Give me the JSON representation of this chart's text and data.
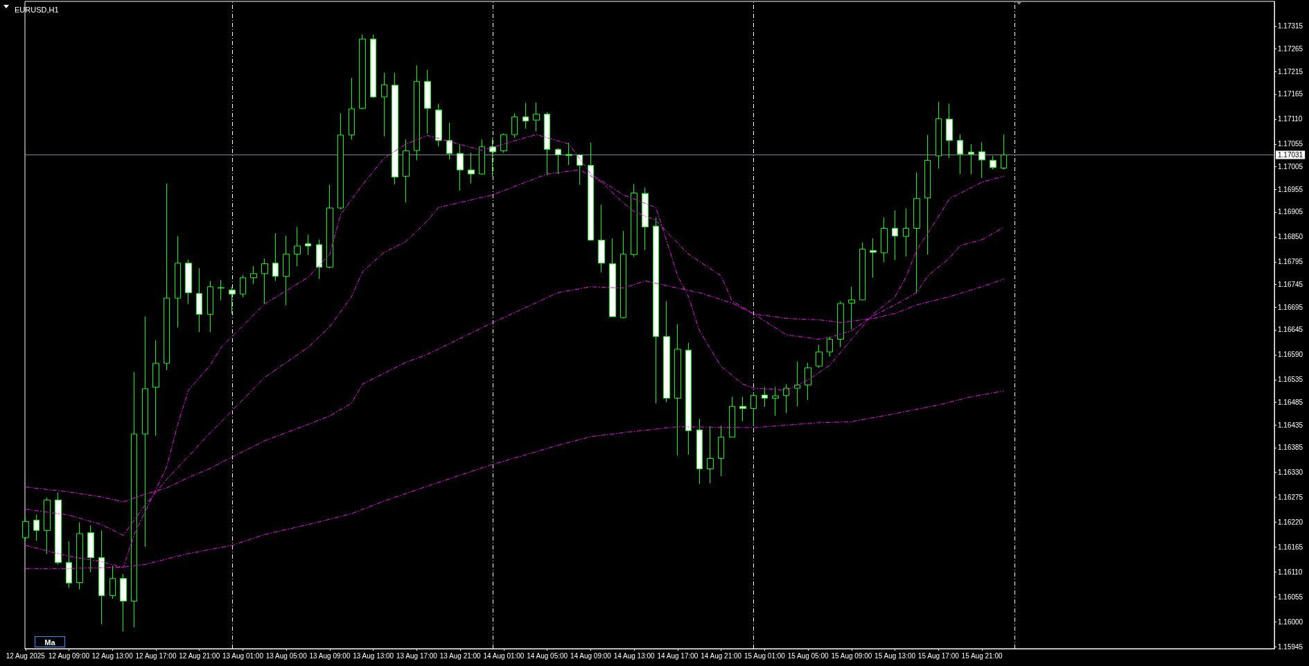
{
  "chart_data": {
    "type": "candlestick",
    "title": "EURUSD,H1",
    "annotations": [
      "Ma"
    ],
    "color": "#00ff00",
    "marker": "none",
    "x": [
      "2025-08-12T05:00",
      "2025-08-12T06:00",
      "2025-08-12T07:00",
      "2025-08-12T08:00",
      "2025-08-12T09:00",
      "2025-08-12T10:00",
      "2025-08-12T11:00",
      "2025-08-12T12:00",
      "2025-08-12T13:00",
      "2025-08-12T14:00",
      "2025-08-12T15:00",
      "2025-08-12T16:00",
      "2025-08-12T17:00",
      "2025-08-12T18:00",
      "2025-08-12T19:00",
      "2025-08-12T20:00",
      "2025-08-12T21:00",
      "2025-08-12T22:00",
      "2025-08-12T23:00",
      "2025-08-13T00:00",
      "2025-08-13T01:00",
      "2025-08-13T02:00",
      "2025-08-13T03:00",
      "2025-08-13T04:00",
      "2025-08-13T05:00",
      "2025-08-13T06:00",
      "2025-08-13T07:00",
      "2025-08-13T08:00",
      "2025-08-13T09:00",
      "2025-08-13T10:00",
      "2025-08-13T11:00",
      "2025-08-13T12:00",
      "2025-08-13T13:00",
      "2025-08-13T14:00",
      "2025-08-13T15:00",
      "2025-08-13T16:00",
      "2025-08-13T17:00",
      "2025-08-13T18:00",
      "2025-08-13T19:00",
      "2025-08-13T20:00",
      "2025-08-13T21:00",
      "2025-08-13T22:00",
      "2025-08-13T23:00",
      "2025-08-14T00:00",
      "2025-08-14T01:00",
      "2025-08-14T02:00",
      "2025-08-14T03:00",
      "2025-08-14T04:00",
      "2025-08-14T05:00",
      "2025-08-14T06:00",
      "2025-08-14T07:00",
      "2025-08-14T08:00",
      "2025-08-14T09:00",
      "2025-08-14T10:00",
      "2025-08-14T11:00",
      "2025-08-14T12:00",
      "2025-08-14T13:00",
      "2025-08-14T14:00",
      "2025-08-14T15:00",
      "2025-08-14T16:00",
      "2025-08-14T17:00",
      "2025-08-14T18:00",
      "2025-08-14T19:00",
      "2025-08-14T20:00",
      "2025-08-14T21:00",
      "2025-08-14T22:00",
      "2025-08-14T23:00",
      "2025-08-15T00:00",
      "2025-08-15T01:00",
      "2025-08-15T02:00",
      "2025-08-15T03:00",
      "2025-08-15T04:00",
      "2025-08-15T05:00",
      "2025-08-15T06:00",
      "2025-08-15T07:00",
      "2025-08-15T08:00",
      "2025-08-15T09:00",
      "2025-08-15T10:00",
      "2025-08-15T11:00",
      "2025-08-15T12:00",
      "2025-08-15T13:00",
      "2025-08-15T14:00",
      "2025-08-15T15:00",
      "2025-08-15T16:00",
      "2025-08-15T17:00",
      "2025-08-15T18:00",
      "2025-08-15T19:00",
      "2025-08-15T20:00",
      "2025-08-15T21:00",
      "2025-08-15T22:00",
      "2025-08-15T23:00"
    ],
    "ohlc": [
      [
        1.16186,
        1.1623,
        1.16179,
        1.16222
      ],
      [
        1.16225,
        1.16237,
        1.16179,
        1.16202
      ],
      [
        1.16202,
        1.16275,
        1.1615,
        1.16269
      ],
      [
        1.16269,
        1.16286,
        1.16127,
        1.16131
      ],
      [
        1.16131,
        1.16178,
        1.16075,
        1.16086
      ],
      [
        1.16087,
        1.1622,
        1.16072,
        1.16195
      ],
      [
        1.16197,
        1.16213,
        1.1611,
        1.16142
      ],
      [
        1.16142,
        1.16202,
        1.15995,
        1.16058
      ],
      [
        1.16058,
        1.16124,
        1.16051,
        1.16096
      ],
      [
        1.16096,
        1.16106,
        1.15979,
        1.16046
      ],
      [
        1.16046,
        1.16552,
        1.15988,
        1.16415
      ],
      [
        1.16415,
        1.16674,
        1.16166,
        1.16515
      ],
      [
        1.16518,
        1.16622,
        1.16411,
        1.16571
      ],
      [
        1.16571,
        1.16968,
        1.16556,
        1.16715
      ],
      [
        1.16715,
        1.16852,
        1.1665,
        1.16792
      ],
      [
        1.16792,
        1.168,
        1.16702,
        1.16727
      ],
      [
        1.16725,
        1.16781,
        1.1664,
        1.16679
      ],
      [
        1.16679,
        1.16753,
        1.1664,
        1.1674
      ],
      [
        1.16738,
        1.16755,
        1.1671,
        1.16737
      ],
      [
        1.16733,
        1.1674,
        1.1668,
        1.16724
      ],
      [
        1.16724,
        1.16766,
        1.16717,
        1.1676
      ],
      [
        1.1676,
        1.16786,
        1.16746,
        1.16769
      ],
      [
        1.16769,
        1.16802,
        1.16702,
        1.16791
      ],
      [
        1.16792,
        1.16858,
        1.16753,
        1.16763
      ],
      [
        1.16763,
        1.16853,
        1.16699,
        1.16812
      ],
      [
        1.16812,
        1.16872,
        1.16785,
        1.1683
      ],
      [
        1.16835,
        1.16855,
        1.1681,
        1.1683
      ],
      [
        1.16833,
        1.16844,
        1.16757,
        1.16783
      ],
      [
        1.16783,
        1.16965,
        1.16781,
        1.16914
      ],
      [
        1.16914,
        1.17123,
        1.16911,
        1.17075
      ],
      [
        1.17075,
        1.17201,
        1.17065,
        1.17133
      ],
      [
        1.17134,
        1.17297,
        1.17132,
        1.17287
      ],
      [
        1.17287,
        1.17297,
        1.17157,
        1.17159
      ],
      [
        1.17159,
        1.17212,
        1.17072,
        1.17186
      ],
      [
        1.17185,
        1.17212,
        1.16966,
        1.16982
      ],
      [
        1.16984,
        1.17065,
        1.16926,
        1.1704
      ],
      [
        1.17041,
        1.17229,
        1.17019,
        1.17193
      ],
      [
        1.17193,
        1.17219,
        1.17078,
        1.17134
      ],
      [
        1.1713,
        1.17144,
        1.1705,
        1.17063
      ],
      [
        1.17063,
        1.17102,
        1.17021,
        1.17034
      ],
      [
        1.17034,
        1.17055,
        1.16952,
        1.16998
      ],
      [
        1.16998,
        1.17036,
        1.16968,
        1.16989
      ],
      [
        1.16989,
        1.17065,
        1.16987,
        1.17049
      ],
      [
        1.17049,
        1.17069,
        1.16984,
        1.17038
      ],
      [
        1.1704,
        1.17078,
        1.17036,
        1.17076
      ],
      [
        1.17076,
        1.17123,
        1.17069,
        1.17115
      ],
      [
        1.17115,
        1.17146,
        1.17089,
        1.17106
      ],
      [
        1.17108,
        1.17147,
        1.17083,
        1.17121
      ],
      [
        1.17121,
        1.17125,
        1.16986,
        1.17043
      ],
      [
        1.17043,
        1.17046,
        1.16989,
        1.17031
      ],
      [
        1.17032,
        1.17058,
        1.17009,
        1.1703
      ],
      [
        1.17031,
        1.17032,
        1.16965,
        1.17008
      ],
      [
        1.17008,
        1.17058,
        1.16843,
        1.16843
      ],
      [
        1.16843,
        1.16921,
        1.16772,
        1.16792
      ],
      [
        1.16791,
        1.16847,
        1.16674,
        1.16674
      ],
      [
        1.16672,
        1.16863,
        1.1667,
        1.16812
      ],
      [
        1.16811,
        1.16967,
        1.16806,
        1.16947
      ],
      [
        1.16946,
        1.16959,
        1.16821,
        1.16872
      ],
      [
        1.16874,
        1.16893,
        1.16483,
        1.1663
      ],
      [
        1.1663,
        1.16708,
        1.16485,
        1.16494
      ],
      [
        1.16494,
        1.16657,
        1.16368,
        1.16602
      ],
      [
        1.166,
        1.16616,
        1.16369,
        1.16422
      ],
      [
        1.16424,
        1.16448,
        1.16305,
        1.16338
      ],
      [
        1.16338,
        1.16432,
        1.16306,
        1.16361
      ],
      [
        1.16361,
        1.16433,
        1.16322,
        1.16408
      ],
      [
        1.16408,
        1.16497,
        1.16408,
        1.16476
      ],
      [
        1.16476,
        1.16497,
        1.16443,
        1.16471
      ],
      [
        1.16471,
        1.16506,
        1.16433,
        1.165
      ],
      [
        1.16501,
        1.16519,
        1.16475,
        1.16494
      ],
      [
        1.16494,
        1.16519,
        1.16455,
        1.16499
      ],
      [
        1.165,
        1.16525,
        1.16461,
        1.16516
      ],
      [
        1.16516,
        1.16575,
        1.16476,
        1.16523
      ],
      [
        1.16523,
        1.16572,
        1.1649,
        1.16561
      ],
      [
        1.16565,
        1.16612,
        1.16561,
        1.16596
      ],
      [
        1.16596,
        1.1663,
        1.16586,
        1.16624
      ],
      [
        1.16624,
        1.16708,
        1.16607,
        1.16703
      ],
      [
        1.16704,
        1.1674,
        1.16646,
        1.16711
      ],
      [
        1.16711,
        1.16838,
        1.16711,
        1.16823
      ],
      [
        1.1682,
        1.16847,
        1.1676,
        1.16816
      ],
      [
        1.16815,
        1.16893,
        1.16794,
        1.16869
      ],
      [
        1.16869,
        1.16909,
        1.16799,
        1.16852
      ],
      [
        1.16851,
        1.16913,
        1.16807,
        1.16869
      ],
      [
        1.16869,
        1.16992,
        1.16725,
        1.16935
      ],
      [
        1.16936,
        1.17075,
        1.16811,
        1.17019
      ],
      [
        1.17029,
        1.17148,
        1.17001,
        1.17111
      ],
      [
        1.1711,
        1.17144,
        1.17024,
        1.17063
      ],
      [
        1.17063,
        1.17076,
        1.16989,
        1.17033
      ],
      [
        1.17037,
        1.17055,
        1.16988,
        1.17033
      ],
      [
        1.17038,
        1.17059,
        1.1698,
        1.1702
      ],
      [
        1.17019,
        1.17029,
        1.16999,
        1.17003
      ],
      [
        1.17002,
        1.17076,
        1.16999,
        1.17031
      ]
    ],
    "series": [
      {
        "type": "line",
        "color": "#ff00ff",
        "line_style": "dashed",
        "x": [
          "2025-08-12T05:00",
          "2025-08-12T09:00",
          "2025-08-12T12:00",
          "2025-08-12T14:00",
          "2025-08-12T15:00",
          "2025-08-12T18:00",
          "2025-08-12T19:00",
          "2025-08-12T20:00",
          "2025-08-12T22:00",
          "2025-08-12T23:00",
          "2025-08-13T03:00",
          "2025-08-13T07:00",
          "2025-08-13T09:00",
          "2025-08-13T10:00",
          "2025-08-13T12:00",
          "2025-08-13T14:00",
          "2025-08-13T16:00",
          "2025-08-13T18:00",
          "2025-08-13T23:00",
          "2025-08-14T04:00",
          "2025-08-14T07:00",
          "2025-08-14T09:00",
          "2025-08-14T12:00",
          "2025-08-14T15:00",
          "2025-08-14T16:00",
          "2025-08-14T17:00",
          "2025-08-14T18:00",
          "2025-08-14T19:00",
          "2025-08-14T21:00",
          "2025-08-14T23:00",
          "2025-08-15T00:00",
          "2025-08-15T03:00",
          "2025-08-15T05:00",
          "2025-08-15T07:00",
          "2025-08-15T09:00",
          "2025-08-15T11:00",
          "2025-08-15T13:00",
          "2025-08-15T14:00",
          "2025-08-15T15:00",
          "2025-08-15T17:00",
          "2025-08-15T18:00",
          "2025-08-15T21:00",
          "2025-08-15T23:00"
        ],
        "values": [
          1.16169,
          1.16145,
          1.16133,
          1.1612,
          1.16193,
          1.16343,
          1.16436,
          1.16512,
          1.16567,
          1.16606,
          1.16702,
          1.16761,
          1.16812,
          1.169,
          1.16965,
          1.17024,
          1.17055,
          1.17074,
          1.17041,
          1.17076,
          1.17055,
          1.16989,
          1.16943,
          1.16915,
          1.1684,
          1.16764,
          1.16718,
          1.16643,
          1.16564,
          1.16525,
          1.16516,
          1.16512,
          1.16534,
          1.16567,
          1.16624,
          1.1668,
          1.16718,
          1.16761,
          1.16821,
          1.16895,
          1.16934,
          1.16971,
          1.16984
        ]
      },
      {
        "type": "line",
        "color": "#ff00ff",
        "line_style": "dashed",
        "x": [
          "2025-08-12T05:00",
          "2025-08-12T09:00",
          "2025-08-12T12:00",
          "2025-08-12T14:00",
          "2025-08-12T16:00",
          "2025-08-12T18:00",
          "2025-08-12T20:00",
          "2025-08-12T22:00",
          "2025-08-12T23:00",
          "2025-08-13T03:00",
          "2025-08-13T07:00",
          "2025-08-13T09:00",
          "2025-08-13T11:00",
          "2025-08-13T12:00",
          "2025-08-13T14:00",
          "2025-08-13T16:00",
          "2025-08-13T18:00",
          "2025-08-13T19:00",
          "2025-08-14T00:00",
          "2025-08-14T05:00",
          "2025-08-14T08:00",
          "2025-08-14T10:00",
          "2025-08-14T12:00",
          "2025-08-14T13:00",
          "2025-08-14T15:00",
          "2025-08-14T18:00",
          "2025-08-14T21:00",
          "2025-08-14T22:00",
          "2025-08-15T00:00",
          "2025-08-15T03:00",
          "2025-08-15T06:00",
          "2025-08-15T07:00",
          "2025-08-15T09:00",
          "2025-08-15T11:00",
          "2025-08-15T13:00",
          "2025-08-15T15:00",
          "2025-08-15T16:00",
          "2025-08-15T18:00",
          "2025-08-15T19:00",
          "2025-08-15T21:00",
          "2025-08-15T23:00"
        ],
        "values": [
          1.16249,
          1.16236,
          1.16215,
          1.16191,
          1.16258,
          1.16315,
          1.16366,
          1.16418,
          1.16442,
          1.1654,
          1.16606,
          1.16652,
          1.16718,
          1.16773,
          1.16816,
          1.1684,
          1.16886,
          1.16915,
          1.16943,
          1.16989,
          1.16998,
          1.16971,
          1.16925,
          1.16906,
          1.16886,
          1.16812,
          1.16764,
          1.16709,
          1.1668,
          1.16634,
          1.16624,
          1.16628,
          1.16643,
          1.16676,
          1.167,
          1.16727,
          1.16764,
          1.16803,
          1.16831,
          1.16844,
          1.16871
        ]
      },
      {
        "type": "line",
        "color": "#ff00ff",
        "line_style": "dashed",
        "x": [
          "2025-08-12T05:00",
          "2025-08-12T09:00",
          "2025-08-12T12:00",
          "2025-08-12T14:00",
          "2025-08-12T16:00",
          "2025-08-12T18:00",
          "2025-08-12T20:00",
          "2025-08-12T22:00",
          "2025-08-12T23:00",
          "2025-08-13T03:00",
          "2025-08-13T07:00",
          "2025-08-13T09:00",
          "2025-08-13T11:00",
          "2025-08-13T12:00",
          "2025-08-13T14:00",
          "2025-08-13T16:00",
          "2025-08-13T18:00",
          "2025-08-14T00:00",
          "2025-08-14T06:00",
          "2025-08-14T09:00",
          "2025-08-14T12:00",
          "2025-08-14T14:00",
          "2025-08-14T17:00",
          "2025-08-14T19:00",
          "2025-08-14T22:00",
          "2025-08-15T00:00",
          "2025-08-15T03:00",
          "2025-08-15T06:00",
          "2025-08-15T08:00",
          "2025-08-15T11:00",
          "2025-08-15T13:00",
          "2025-08-15T15:00",
          "2025-08-15T18:00",
          "2025-08-15T21:00",
          "2025-08-15T23:00"
        ],
        "values": [
          1.16298,
          1.16287,
          1.16276,
          1.16265,
          1.16282,
          1.16296,
          1.16319,
          1.16339,
          1.16352,
          1.164,
          1.16436,
          1.16455,
          1.16483,
          1.16525,
          1.16549,
          1.16573,
          1.16591,
          1.16661,
          1.16727,
          1.1674,
          1.16737,
          1.16753,
          1.16737,
          1.16727,
          1.16704,
          1.1668,
          1.1667,
          1.16667,
          1.16661,
          1.1667,
          1.16681,
          1.167,
          1.16718,
          1.1674,
          1.16757
        ]
      },
      {
        "type": "line",
        "color": "#ff00ff",
        "line_style": "dashed",
        "x": [
          "2025-08-12T05:00",
          "2025-08-12T09:00",
          "2025-08-12T14:00",
          "2025-08-12T16:00",
          "2025-08-12T20:00",
          "2025-08-13T00:00",
          "2025-08-13T03:00",
          "2025-08-13T07:00",
          "2025-08-13T11:00",
          "2025-08-13T14:00",
          "2025-08-13T18:00",
          "2025-08-14T00:00",
          "2025-08-14T06:00",
          "2025-08-14T09:00",
          "2025-08-14T12:00",
          "2025-08-14T17:00",
          "2025-08-15T00:00",
          "2025-08-15T06:00",
          "2025-08-15T09:00",
          "2025-08-15T13:00",
          "2025-08-15T17:00",
          "2025-08-15T20:00",
          "2025-08-15T23:00"
        ],
        "values": [
          1.16118,
          1.16118,
          1.16121,
          1.16127,
          1.16151,
          1.16169,
          1.16193,
          1.16215,
          1.16239,
          1.16267,
          1.163,
          1.16348,
          1.1639,
          1.16409,
          1.16418,
          1.16431,
          1.16429,
          1.1644,
          1.16442,
          1.1646,
          1.16479,
          1.16497,
          1.1651
        ]
      }
    ],
    "xlim": [
      "2025-08-12T04:57",
      "2025-08-16T23:54"
    ],
    "xticks": [
      {
        "value": "2025-08-12T05:00",
        "label": "12 Aug 2025"
      },
      {
        "value": "2025-08-12T09:00",
        "label": "12 Aug 09:00"
      },
      {
        "value": "2025-08-12T13:00",
        "label": "12 Aug 13:00"
      },
      {
        "value": "2025-08-12T17:00",
        "label": "12 Aug 17:00"
      },
      {
        "value": "2025-08-12T21:00",
        "label": "12 Aug 21:00"
      },
      {
        "value": "2025-08-13T01:00",
        "label": "13 Aug 01:00"
      },
      {
        "value": "2025-08-13T05:00",
        "label": "13 Aug 05:00"
      },
      {
        "value": "2025-08-13T09:00",
        "label": "13 Aug 09:00"
      },
      {
        "value": "2025-08-13T13:00",
        "label": "13 Aug 13:00"
      },
      {
        "value": "2025-08-13T17:00",
        "label": "13 Aug 17:00"
      },
      {
        "value": "2025-08-13T21:00",
        "label": "13 Aug 21:00"
      },
      {
        "value": "2025-08-14T01:00",
        "label": "14 Aug 01:00"
      },
      {
        "value": "2025-08-14T05:00",
        "label": "14 Aug 05:00"
      },
      {
        "value": "2025-08-14T09:00",
        "label": "14 Aug 09:00"
      },
      {
        "value": "2025-08-14T13:00",
        "label": "14 Aug 13:00"
      },
      {
        "value": "2025-08-14T17:00",
        "label": "14 Aug 17:00"
      },
      {
        "value": "2025-08-14T21:00",
        "label": "14 Aug 21:00"
      },
      {
        "value": "2025-08-15T01:00",
        "label": "15 Aug 01:00"
      },
      {
        "value": "2025-08-15T05:00",
        "label": "15 Aug 05:00"
      },
      {
        "value": "2025-08-15T09:00",
        "label": "15 Aug 09:00"
      },
      {
        "value": "2025-08-15T13:00",
        "label": "15 Aug 13:00"
      },
      {
        "value": "2025-08-15T17:00",
        "label": "15 Aug 17:00"
      },
      {
        "value": "2025-08-15T21:00",
        "label": "15 Aug 21:00"
      }
    ],
    "ylim": [
      1.15941,
      1.1737
    ],
    "yticks": [
      1.15945,
      {
        "value": 1.16,
        "label": "1.16000"
      },
      1.16055,
      {
        "value": 1.1611,
        "label": "1.16110"
      },
      1.16165,
      {
        "value": 1.1622,
        "label": "1.16220"
      },
      1.16275,
      {
        "value": 1.1633,
        "label": "1.16330"
      },
      1.16385,
      1.16435,
      1.16485,
      1.16535,
      {
        "value": 1.1659,
        "label": "1.16590"
      },
      1.16645,
      1.16695,
      1.16745,
      1.16795,
      {
        "value": 1.1685,
        "label": "1.16850"
      },
      1.16905,
      1.16955,
      1.17005,
      1.17055,
      {
        "value": 1.1711,
        "label": "1.17110"
      },
      1.17165,
      1.17215,
      1.17265,
      1.17315
    ],
    "ref_lines": [
      {
        "axis": "y",
        "value": 1.17031,
        "label": "1.17031",
        "color": "#778899"
      },
      {
        "axis": "x",
        "value": "2025-08-13T00:00",
        "color": "#ffffff",
        "line_style": "dashed"
      },
      {
        "axis": "x",
        "value": "2025-08-14T00:00",
        "color": "#ffffff",
        "line_style": "dashed"
      },
      {
        "axis": "x",
        "value": "2025-08-15T00:00",
        "color": "#ffffff",
        "line_style": "dashed"
      },
      {
        "axis": "x",
        "value": "2025-08-16T00:00",
        "color": "#ffffff",
        "line_style": "dashed"
      }
    ]
  }
}
